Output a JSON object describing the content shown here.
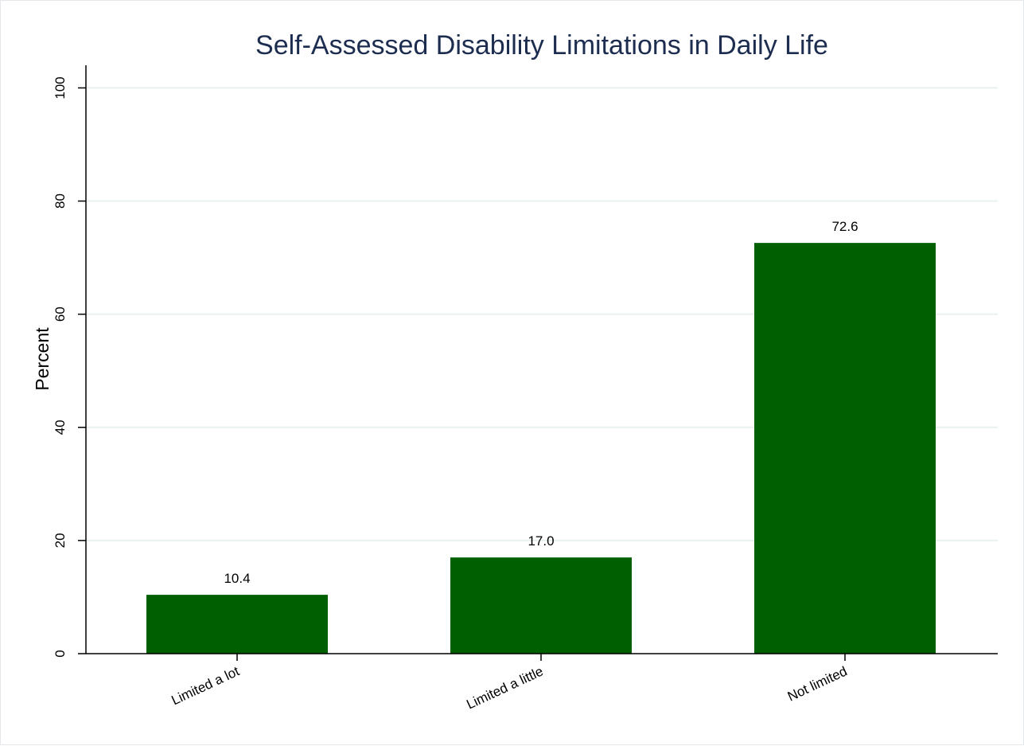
{
  "chart_data": {
    "type": "bar",
    "title": "Self-Assessed Disability Limitations in Daily Life",
    "xlabel": "",
    "ylabel": "Percent",
    "categories": [
      "Limited a lot",
      "Limited a little",
      "Not limited"
    ],
    "values": [
      10.4,
      17.0,
      72.6
    ],
    "value_labels": [
      "10.4",
      "17.0",
      "72.6"
    ],
    "ylim": [
      0,
      104
    ],
    "yticks": [
      0,
      20,
      40,
      60,
      80,
      100
    ],
    "grid": true,
    "legend": "none",
    "colors": {
      "bar": "#005f00",
      "grid": "#e8f0f0",
      "title": "#1c2d4f",
      "axis": "#000000"
    }
  }
}
